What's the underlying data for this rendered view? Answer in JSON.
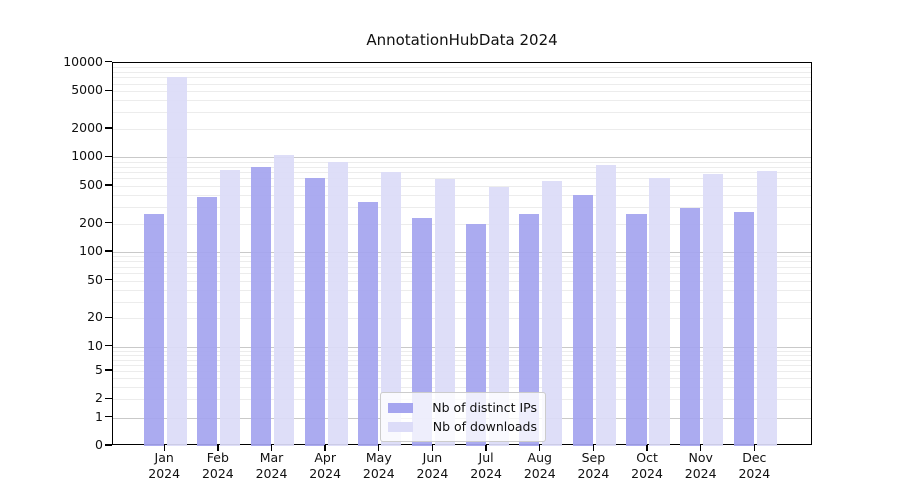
{
  "chart_data": {
    "type": "bar",
    "title": "AnnotationHubData 2024",
    "categories": [
      "Jan",
      "Feb",
      "Mar",
      "Apr",
      "May",
      "Jun",
      "Jul",
      "Aug",
      "Sep",
      "Oct",
      "Nov",
      "Dec"
    ],
    "year_label": "2024",
    "series": [
      {
        "name": "Nb of distinct IPs",
        "color": "#a5a5ef",
        "values": [
          250,
          380,
          800,
          600,
          340,
          230,
          200,
          250,
          400,
          250,
          290,
          265
        ]
      },
      {
        "name": "Nb of downloads",
        "color": "#dcdcf8",
        "values": [
          7000,
          730,
          1060,
          900,
          700,
          590,
          490,
          560,
          830,
          600,
          670,
          720
        ]
      }
    ],
    "yscale": "symlog",
    "ylim": [
      0,
      10000
    ],
    "yticks": [
      10000,
      5000,
      2000,
      1000,
      500,
      200,
      100,
      50,
      20,
      10,
      5,
      2,
      1,
      0
    ],
    "xlabel": "",
    "ylabel": "",
    "grid": true,
    "legend_position": "lower center"
  }
}
